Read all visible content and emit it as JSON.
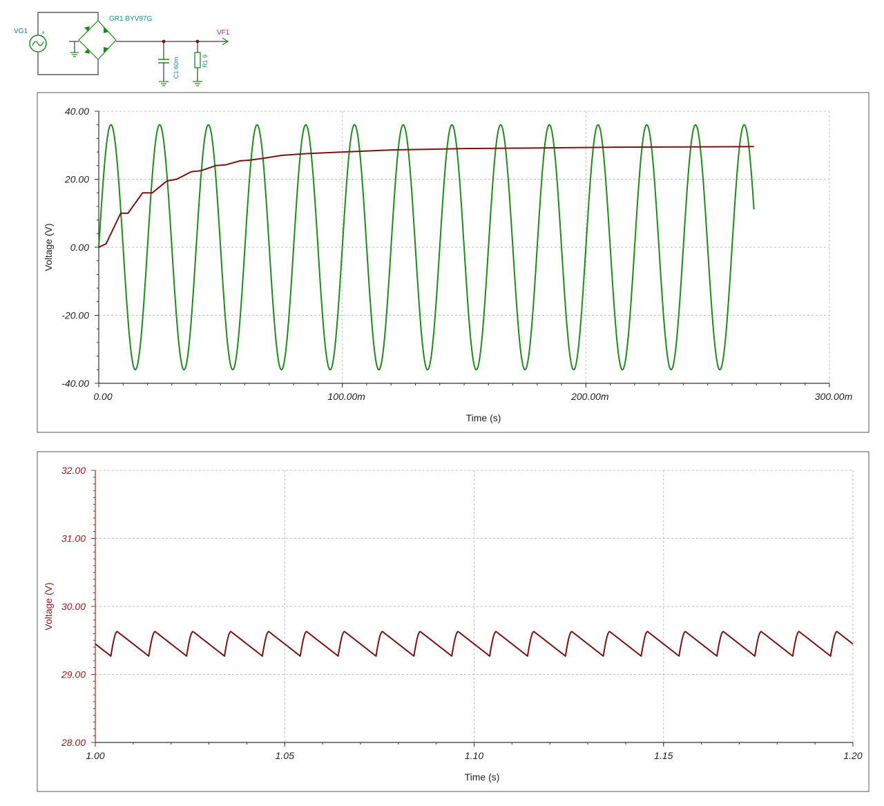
{
  "schematic": {
    "source_label": "VG1",
    "source_polarity": "+",
    "bridge_label": "GR1 BYV97G",
    "capacitor_label": "C1 60m",
    "resistor_label": "R1 9",
    "probe_label": "VF1",
    "colors": {
      "wire": "#3a3a3a",
      "component": "#1a8a1a",
      "label": "#1a8a8a",
      "probe": "#a020a0"
    }
  },
  "chart_data": [
    {
      "type": "line",
      "xlabel": "Time (s)",
      "ylabel": "Voltage (V)",
      "xlim": [
        0,
        0.3
      ],
      "ylim": [
        -40,
        40
      ],
      "x_ticks": [
        0,
        0.1,
        0.2,
        0.3
      ],
      "x_tick_labels": [
        "0.00",
        "100.00m",
        "200.00m",
        "300.00m"
      ],
      "y_ticks": [
        40,
        20,
        0,
        -20,
        -40
      ],
      "y_tick_labels": [
        "40.00",
        "20.00",
        "0.00",
        "-20.00",
        "-40.00"
      ],
      "grid": true,
      "series": [
        {
          "kind": "sine",
          "color": "#1e8a1e",
          "amplitude": 36,
          "frequency_hz": 50,
          "t_end": 0.269
        },
        {
          "kind": "rectified",
          "color": "#7a1010",
          "x": [
            0,
            0.003,
            0.009,
            0.012,
            0.018,
            0.022,
            0.028,
            0.032,
            0.038,
            0.042,
            0.048,
            0.052,
            0.058,
            0.062,
            0.068,
            0.075,
            0.085,
            0.1,
            0.12,
            0.15,
            0.18,
            0.21,
            0.24,
            0.269
          ],
          "y": [
            0,
            1,
            10,
            10,
            16,
            16,
            19.5,
            20,
            22.2,
            22.5,
            24,
            24.2,
            25.4,
            25.6,
            26.2,
            27,
            27.5,
            28,
            28.6,
            29,
            29.2,
            29.4,
            29.5,
            29.6
          ]
        }
      ]
    },
    {
      "type": "line",
      "xlabel": "Time (s)",
      "ylabel": "Voltage (V)",
      "xlim": [
        1.0,
        1.2
      ],
      "ylim": [
        28,
        32
      ],
      "x_ticks": [
        1.0,
        1.05,
        1.1,
        1.15,
        1.2
      ],
      "x_tick_labels": [
        "1.00",
        "1.05",
        "1.10",
        "1.15",
        "1.20"
      ],
      "y_ticks": [
        32,
        31,
        30,
        29,
        28
      ],
      "y_tick_labels": [
        "32.00",
        "31.00",
        "30.00",
        "29.00",
        "28.00"
      ],
      "grid": true,
      "series": [
        {
          "kind": "ripple",
          "color": "#7a1010",
          "period": 0.01,
          "v_min": 29.27,
          "v_max": 29.63,
          "phase_peak": 1.0058
        }
      ]
    }
  ]
}
